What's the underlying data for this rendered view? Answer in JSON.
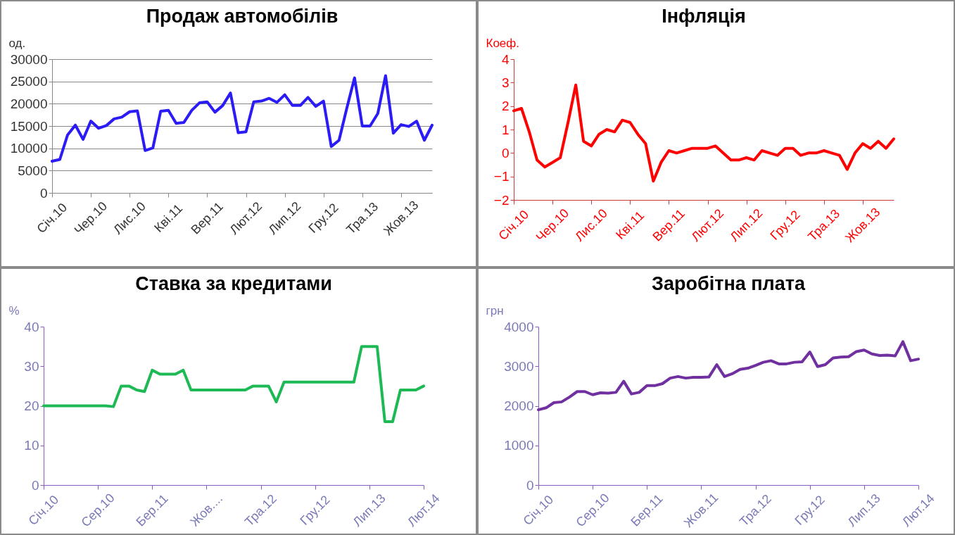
{
  "chart_data": [
    {
      "type": "line",
      "title": "Продаж автомобілів",
      "ylabel": "од.",
      "categories": [
        "Січ.10",
        null,
        null,
        null,
        null,
        "Чер.10",
        null,
        null,
        null,
        null,
        "Лис.10",
        null,
        null,
        null,
        null,
        "Кві.11",
        null,
        null,
        null,
        null,
        "Вер.11",
        null,
        null,
        null,
        null,
        "Лют.12",
        null,
        null,
        null,
        null,
        "Лип.12",
        null,
        null,
        null,
        null,
        "Гру.12",
        null,
        null,
        null,
        null,
        "Тра.13",
        null,
        null,
        null,
        null,
        "Жов.13",
        null,
        null,
        null,
        null
      ],
      "series": [
        {
          "color": "#2b1cf5",
          "values": [
            7100,
            7500,
            13000,
            15200,
            12000,
            16100,
            14500,
            15100,
            16600,
            17000,
            18200,
            18400,
            9500,
            10100,
            18300,
            18500,
            15600,
            15800,
            18500,
            20200,
            20400,
            18100,
            19600,
            22400,
            13500,
            13700,
            20400,
            20600,
            21200,
            20300,
            22000,
            19600,
            19600,
            21400,
            19400,
            20600,
            10400,
            11800,
            19000,
            25800,
            15000,
            15000,
            17800,
            26300,
            13400,
            15300,
            14900,
            16100,
            11800,
            15200
          ]
        }
      ],
      "ylim": [
        0,
        30000
      ],
      "yticks": [
        0,
        5000,
        10000,
        15000,
        20000,
        25000,
        30000
      ],
      "grid": "y"
    },
    {
      "type": "line",
      "title": "Інфляція",
      "ylabel": "Коеф.",
      "categories": [
        "Січ.10",
        null,
        null,
        null,
        null,
        "Чер.10",
        null,
        null,
        null,
        null,
        "Лис.10",
        null,
        null,
        null,
        null,
        "Кві.11",
        null,
        null,
        null,
        null,
        "Вер.11",
        null,
        null,
        null,
        null,
        "Лют.12",
        null,
        null,
        null,
        null,
        "Лип.12",
        null,
        null,
        null,
        null,
        "Гру.12",
        null,
        null,
        null,
        null,
        "Тра.13",
        null,
        null,
        null,
        null,
        "Жов.13",
        null,
        null,
        null,
        null
      ],
      "series": [
        {
          "color": "#ff0000",
          "values": [
            1.8,
            1.9,
            0.9,
            -0.3,
            -0.6,
            -0.4,
            -0.2,
            1.3,
            2.9,
            0.5,
            0.3,
            0.8,
            1.0,
            0.9,
            1.4,
            1.3,
            0.8,
            0.4,
            -1.2,
            -0.4,
            0.1,
            0.0,
            0.1,
            0.2,
            0.2,
            0.2,
            0.3,
            0.0,
            -0.3,
            -0.3,
            -0.2,
            -0.3,
            0.1,
            0.0,
            -0.1,
            0.2,
            0.2,
            -0.1,
            0.0,
            0.0,
            0.1,
            0.0,
            -0.1,
            -0.7,
            0.0,
            0.4,
            0.2,
            0.5,
            0.2,
            0.6
          ]
        }
      ],
      "ylim": [
        -2,
        4
      ],
      "yticks": [
        -2,
        -1,
        0,
        1,
        2,
        3,
        4
      ]
    },
    {
      "type": "line",
      "title": "Ставка за кредитами",
      "ylabel": "%",
      "categories": [
        "Січ.10",
        null,
        null,
        null,
        null,
        null,
        null,
        "Сер.10",
        null,
        null,
        null,
        null,
        null,
        null,
        "Бер.11",
        null,
        null,
        null,
        null,
        null,
        null,
        "Жов....",
        null,
        null,
        null,
        null,
        null,
        null,
        "Тра.12",
        null,
        null,
        null,
        null,
        null,
        null,
        "Гру.12",
        null,
        null,
        null,
        null,
        null,
        null,
        "Лип.13",
        null,
        null,
        null,
        null,
        null,
        null,
        "Лют.14"
      ],
      "series": [
        {
          "color": "#1db954",
          "values": [
            20,
            20,
            20,
            20,
            20,
            20,
            20,
            20,
            20,
            19.8,
            25,
            25,
            24,
            23.6,
            29,
            28,
            28,
            28,
            29,
            24,
            24,
            24,
            24,
            24,
            24,
            24,
            24,
            25,
            25,
            25,
            21,
            26,
            26,
            26,
            26,
            26,
            26,
            26,
            26,
            26,
            26,
            35,
            35,
            35,
            16,
            16,
            24,
            24,
            24,
            25
          ]
        }
      ],
      "ylim": [
        0,
        40
      ],
      "yticks": [
        0,
        10,
        20,
        30,
        40
      ]
    },
    {
      "type": "line",
      "title": "Заробітна плата",
      "ylabel": "грн",
      "categories": [
        "Січ.10",
        null,
        null,
        null,
        null,
        null,
        null,
        "Сер.10",
        null,
        null,
        null,
        null,
        null,
        null,
        "Бер.11",
        null,
        null,
        null,
        null,
        null,
        null,
        "Жов.11",
        null,
        null,
        null,
        null,
        null,
        null,
        "Тра.12",
        null,
        null,
        null,
        null,
        null,
        null,
        "Гру.12",
        null,
        null,
        null,
        null,
        null,
        null,
        "Лип.13",
        null,
        null,
        null,
        null,
        null,
        null,
        "Лют.14"
      ],
      "series": [
        {
          "color": "#7030a0",
          "values": [
            1900,
            1950,
            2080,
            2100,
            2220,
            2360,
            2360,
            2280,
            2330,
            2320,
            2340,
            2620,
            2300,
            2340,
            2510,
            2510,
            2560,
            2700,
            2740,
            2700,
            2720,
            2720,
            2730,
            3040,
            2740,
            2810,
            2920,
            2950,
            3020,
            3100,
            3140,
            3060,
            3060,
            3100,
            3110,
            3360,
            2990,
            3040,
            3210,
            3230,
            3240,
            3370,
            3410,
            3310,
            3270,
            3280,
            3260,
            3620,
            3140,
            3180
          ]
        }
      ],
      "ylim": [
        0,
        4000
      ],
      "yticks": [
        0,
        1000,
        2000,
        3000,
        4000
      ]
    }
  ]
}
